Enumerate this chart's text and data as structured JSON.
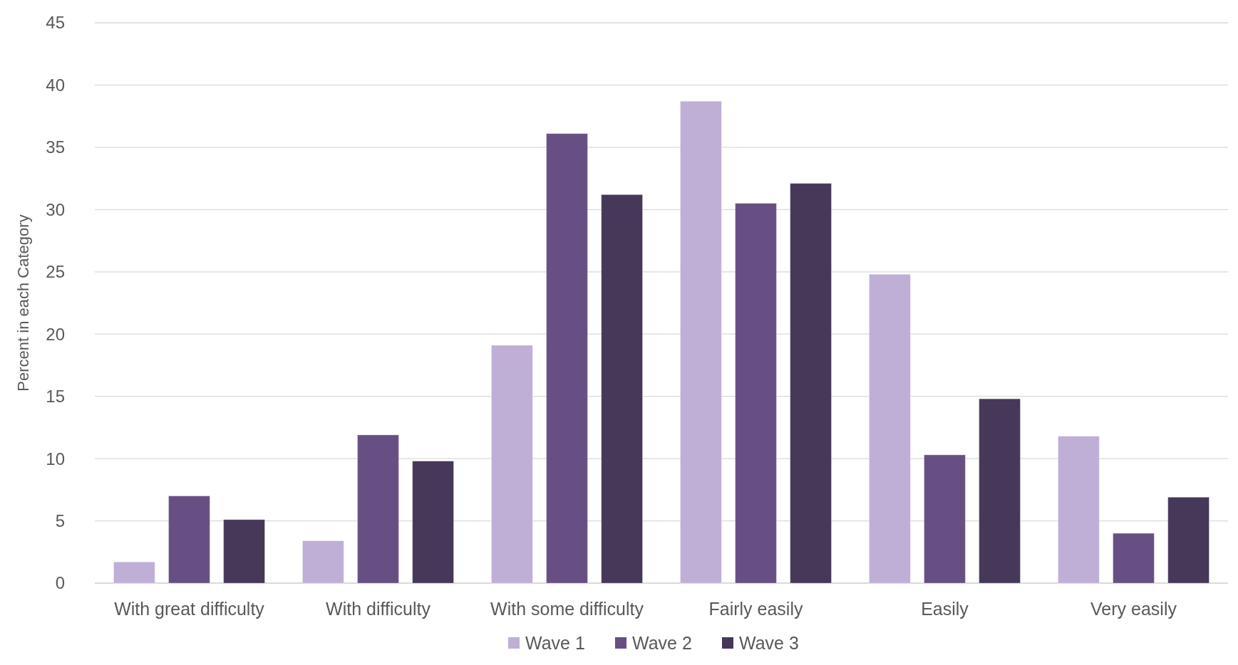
{
  "chart_data": {
    "type": "bar",
    "ylabel": "Percent in each Category",
    "categories": [
      "With great difficulty",
      "With difficulty",
      "With some difficulty",
      "Fairly easily",
      "Easily",
      "Very easily"
    ],
    "series": [
      {
        "name": "Wave 1",
        "color": "#bfafd6",
        "values": [
          1.7,
          3.4,
          19.1,
          38.7,
          24.8,
          11.8
        ]
      },
      {
        "name": "Wave 2",
        "color": "#674f83",
        "values": [
          7.0,
          11.9,
          36.1,
          30.5,
          10.3,
          4.0
        ]
      },
      {
        "name": "Wave 3",
        "color": "#463858",
        "values": [
          5.1,
          9.8,
          31.2,
          32.1,
          14.8,
          6.9
        ]
      }
    ],
    "ylim": [
      0,
      45
    ],
    "yticks": [
      0,
      5,
      10,
      15,
      20,
      25,
      30,
      35,
      40,
      45
    ],
    "grid": "y",
    "legend": "bottom"
  }
}
